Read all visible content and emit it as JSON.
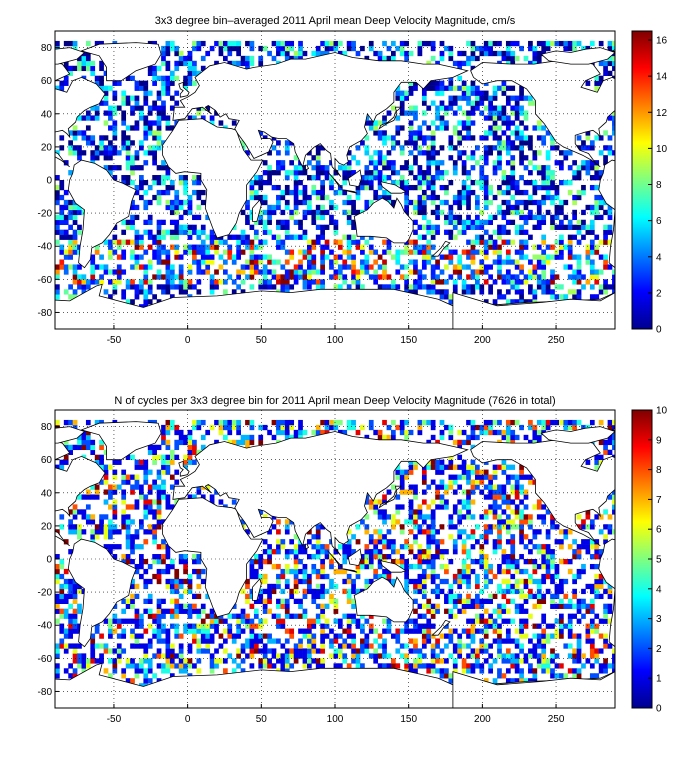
{
  "chart_data": [
    {
      "type": "heatmap",
      "title": "3x3 degree bin–averaged 2011 April mean Deep Velocity Magnitude, cm/s",
      "xlabel": "",
      "ylabel": "",
      "xlim": [
        -90,
        290
      ],
      "ylim": [
        -90,
        90
      ],
      "x_ticks": [
        -50,
        0,
        50,
        100,
        150,
        200,
        250
      ],
      "y_ticks": [
        80,
        60,
        40,
        20,
        0,
        -20,
        -40,
        -60,
        -80
      ],
      "grid": true,
      "bin_size_deg": 3,
      "colorbar": {
        "min": 0,
        "max": 16.5,
        "ticks": [
          0,
          2,
          4,
          6,
          8,
          10,
          12,
          14,
          16
        ],
        "colormap": "jet"
      }
    },
    {
      "type": "heatmap",
      "title": "N of cycles per 3x3 degree bin for 2011 April mean Deep Velocity Magnitude (7626 in total)",
      "xlabel": "",
      "ylabel": "",
      "xlim": [
        -90,
        290
      ],
      "ylim": [
        -90,
        90
      ],
      "x_ticks": [
        -50,
        0,
        50,
        100,
        150,
        200,
        250
      ],
      "y_ticks": [
        80,
        60,
        40,
        20,
        0,
        -20,
        -40,
        -60,
        -80
      ],
      "grid": true,
      "bin_size_deg": 3,
      "colorbar": {
        "min": 0,
        "max": 10,
        "ticks": [
          0,
          1,
          2,
          3,
          4,
          5,
          6,
          7,
          8,
          9,
          10
        ],
        "colormap": "jet"
      }
    }
  ]
}
